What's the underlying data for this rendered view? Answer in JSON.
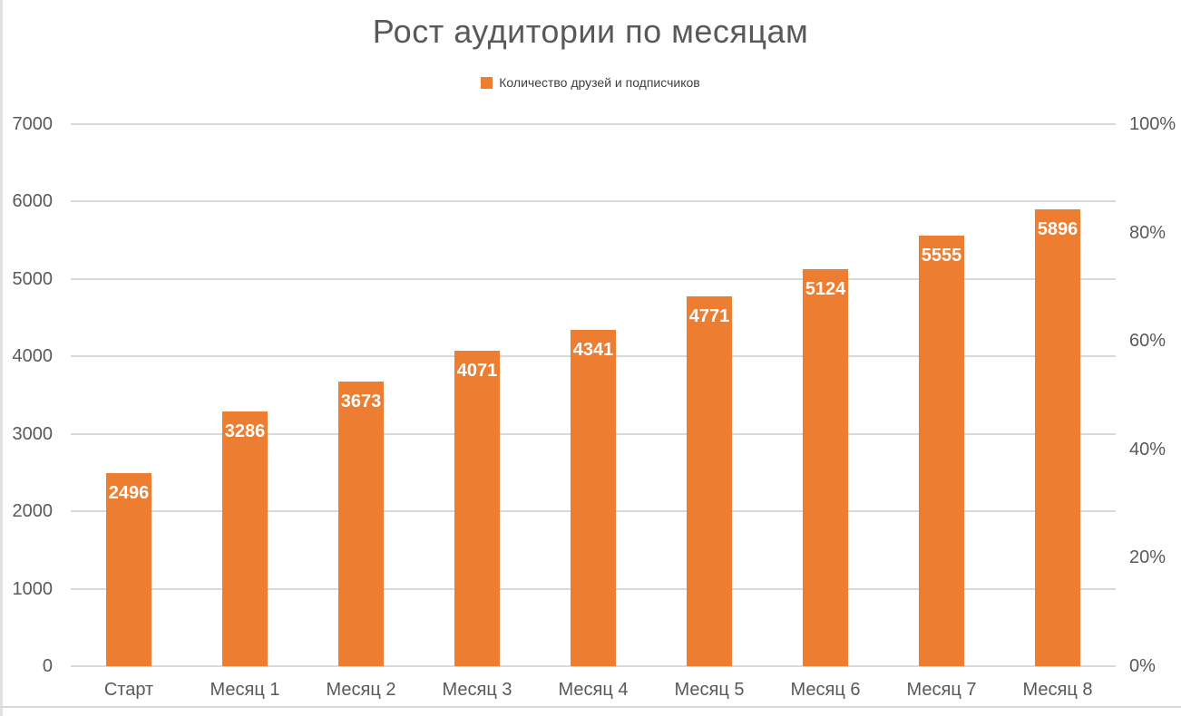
{
  "chart_data": {
    "type": "bar",
    "title": "Рост аудитории по месяцам",
    "categories": [
      "Старт",
      "Месяц 1",
      "Месяц 2",
      "Месяц 3",
      "Месяц 4",
      "Месяц 5",
      "Месяц 6",
      "Месяц 7",
      "Месяц 8"
    ],
    "series": [
      {
        "name": "Количество друзей и подписчиков",
        "values": [
          2496,
          3286,
          3673,
          4071,
          4341,
          4771,
          5124,
          5555,
          5896
        ]
      }
    ],
    "xlabel": "",
    "ylabel": "",
    "legend_position": "top",
    "grid": true,
    "y_axis_left": {
      "min": 0,
      "max": 7000,
      "tick_step": 1000,
      "ticks": [
        0,
        1000,
        2000,
        3000,
        4000,
        5000,
        6000,
        7000
      ]
    },
    "y_axis_right": {
      "min": 0,
      "max": 100,
      "tick_step": 20,
      "ticks": [
        0,
        20,
        40,
        60,
        80,
        100
      ],
      "tick_labels": [
        "0%",
        "20%",
        "40%",
        "60%",
        "80%",
        "100%"
      ]
    },
    "bar_color": "#ED7D31",
    "data_label_color": "#FFFFFF",
    "gridline_color": "#D9D9D9",
    "axis_label_color": "#595959",
    "title_color": "#595959",
    "legend_label_color": "#404040"
  }
}
